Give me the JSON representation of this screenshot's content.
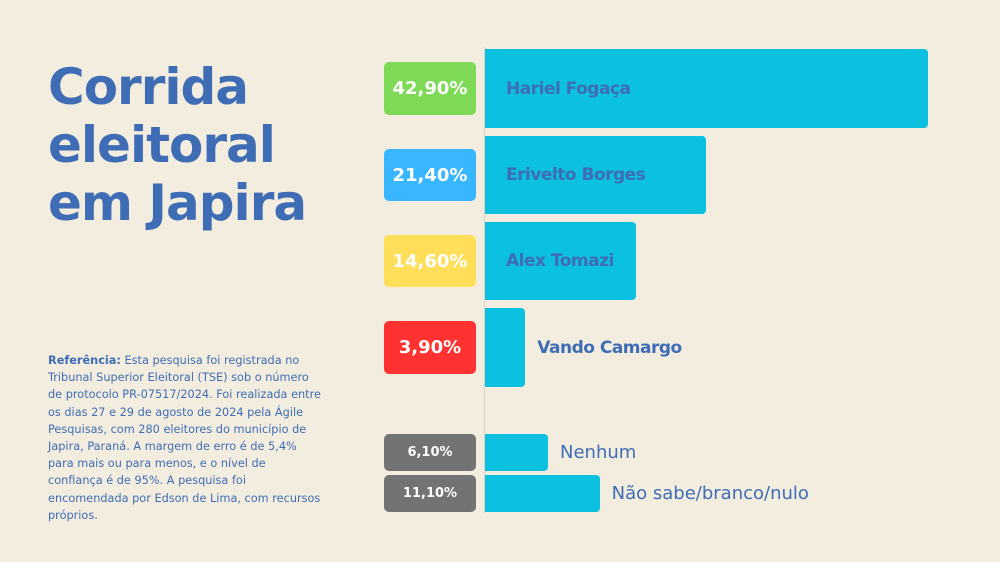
{
  "chart_data": {
    "type": "bar",
    "orientation": "horizontal",
    "title": "Corrida eleitoral em Japira",
    "categories": [
      "Hariel Fogaça",
      "Erivelto Borges",
      "Alex Tomazi",
      "Vando Camargo",
      "Nenhum",
      "Não sabe/branco/nulo"
    ],
    "values": [
      42.9,
      21.4,
      14.6,
      3.9,
      6.1,
      11.1
    ],
    "value_labels": [
      "42,90%",
      "21,40%",
      "14,60%",
      "3,90%",
      "6,10%",
      "11,10%"
    ],
    "color": "#0cc0df",
    "label_colors": [
      "#7ed957",
      "#38b6ff",
      "#ffde59",
      "#ff3131",
      "#737373",
      "#737373"
    ]
  },
  "reference": {
    "label": "Referência:",
    "text": "Esta pesquisa foi registrada no Tribunal Superior Eleitoral (TSE) sob o número de protocolo PR-07517/2024. Foi realizada entre os dias 27 e 29 de agosto de 2024 pela Ágile Pesquisas, com 280 eleitores do município de Japira, Paraná. A margem de erro é de 5,4% para mais ou para menos, e o nível de confiança é de 95%. A pesquisa foi encomendada por Edson de Lima, com recursos próprios."
  }
}
